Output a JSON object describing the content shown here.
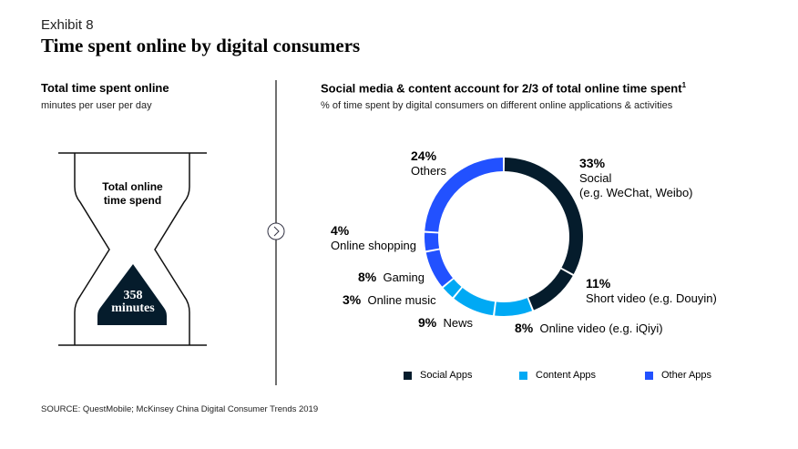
{
  "header": {
    "exhibit": "Exhibit 8",
    "title": "Time spent online by digital consumers"
  },
  "left": {
    "title": "Total time spent online",
    "subtitle": "minutes per user per day",
    "hourglass_label_1": "Total online",
    "hourglass_label_2": "time spend",
    "value": "358",
    "unit": "minutes"
  },
  "right": {
    "title": "Social media & content account for 2/3 of total online time spent",
    "footnote_mark": "1",
    "subtitle": "% of time spent by digital consumers on different online applications & activities"
  },
  "chart_data": {
    "type": "pie",
    "variant": "donut",
    "categories": [
      "Social (e.g. WeChat, Weibo)",
      "Short video (e.g. Douyin)",
      "Online video (e.g. iQiyi)",
      "News",
      "Online music",
      "Gaming",
      "Online shopping",
      "Others"
    ],
    "values": [
      33,
      11,
      8,
      9,
      3,
      8,
      4,
      24
    ],
    "groups": [
      "Social Apps",
      "Social Apps",
      "Content Apps",
      "Content Apps",
      "Content Apps",
      "Other Apps",
      "Other Apps",
      "Other Apps"
    ],
    "labels": [
      {
        "pct": "33%",
        "line1": "Social",
        "line2": "(e.g. WeChat, Weibo)"
      },
      {
        "pct": "11%",
        "line1": "Short video (e.g. Douyin)"
      },
      {
        "pct": "8%",
        "line1": "Online video (e.g. iQiyi)"
      },
      {
        "pct": "9%",
        "line1": "News"
      },
      {
        "pct": "3%",
        "line1": "Online music"
      },
      {
        "pct": "8%",
        "line1": "Gaming"
      },
      {
        "pct": "4%",
        "line1": "Online shopping"
      },
      {
        "pct": "24%",
        "line1": "Others"
      }
    ],
    "legend": [
      {
        "name": "Social Apps",
        "color": "#051c2c"
      },
      {
        "name": "Content Apps",
        "color": "#00a9f4"
      },
      {
        "name": "Other Apps",
        "color": "#2251ff"
      }
    ],
    "legend_placement": "bottom"
  },
  "source": "SOURCE: QuestMobile; McKinsey China Digital Consumer Trends 2019"
}
